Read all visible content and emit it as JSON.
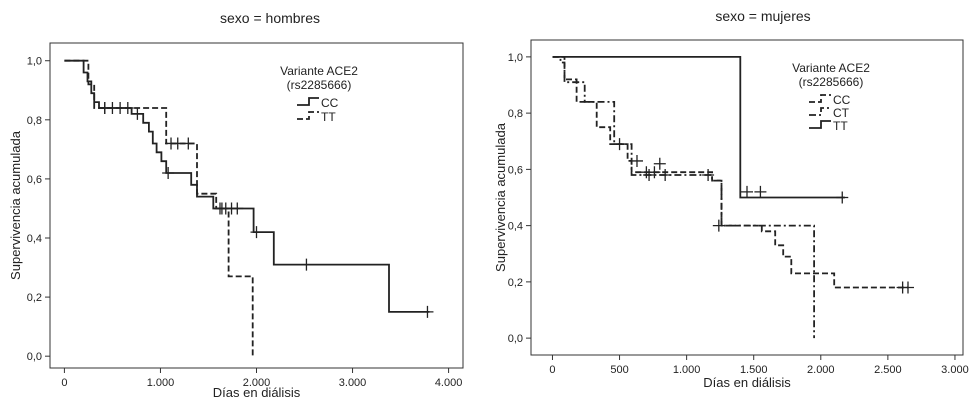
{
  "chart_data": [
    {
      "type": "line",
      "title": "sexo = hombres",
      "xlabel": "Días en diálisis",
      "ylabel": "Supervivencia acumulada",
      "xlim": [
        -150,
        4150
      ],
      "ylim": [
        -0.04,
        1.06
      ],
      "xticks": [
        0,
        1000,
        2000,
        3000,
        4000
      ],
      "xtick_labels": [
        "0",
        "1.000",
        "2.000",
        "3.000",
        "4.000"
      ],
      "yticks": [
        0,
        0.2,
        0.4,
        0.6,
        0.8,
        1.0
      ],
      "ytick_labels": [
        "0,0",
        "0,2",
        "0,4",
        "0,6",
        "0,8",
        "1,0"
      ],
      "legend": {
        "title_line1": "Variante ACE2",
        "title_line2": "(rs2285666)",
        "placement": "top-right"
      },
      "series": [
        {
          "name": "CC",
          "style": "solid",
          "points": [
            [
              0,
              1.0
            ],
            [
              200,
              1.0
            ],
            [
              200,
              0.96
            ],
            [
              240,
              0.96
            ],
            [
              240,
              0.93
            ],
            [
              280,
              0.93
            ],
            [
              280,
              0.89
            ],
            [
              310,
              0.89
            ],
            [
              310,
              0.86
            ],
            [
              360,
              0.86
            ],
            [
              360,
              0.84
            ],
            [
              700,
              0.84
            ],
            [
              700,
              0.82
            ],
            [
              820,
              0.82
            ],
            [
              820,
              0.79
            ],
            [
              880,
              0.79
            ],
            [
              880,
              0.76
            ],
            [
              920,
              0.76
            ],
            [
              920,
              0.72
            ],
            [
              960,
              0.72
            ],
            [
              960,
              0.69
            ],
            [
              1010,
              0.69
            ],
            [
              1010,
              0.66
            ],
            [
              1060,
              0.66
            ],
            [
              1060,
              0.62
            ],
            [
              1320,
              0.62
            ],
            [
              1320,
              0.58
            ],
            [
              1380,
              0.58
            ],
            [
              1380,
              0.54
            ],
            [
              1550,
              0.54
            ],
            [
              1550,
              0.5
            ],
            [
              1970,
              0.5
            ],
            [
              1970,
              0.42
            ],
            [
              2180,
              0.42
            ],
            [
              2180,
              0.31
            ],
            [
              3380,
              0.31
            ],
            [
              3380,
              0.15
            ],
            [
              3800,
              0.15
            ]
          ],
          "censored": [
            [
              420,
              0.84
            ],
            [
              500,
              0.84
            ],
            [
              580,
              0.84
            ],
            [
              660,
              0.84
            ],
            [
              760,
              0.82
            ],
            [
              1080,
              0.62
            ],
            [
              1620,
              0.5
            ],
            [
              1680,
              0.5
            ],
            [
              1740,
              0.5
            ],
            [
              1800,
              0.5
            ],
            [
              2000,
              0.42
            ],
            [
              2520,
              0.31
            ],
            [
              3780,
              0.15
            ]
          ]
        },
        {
          "name": "TT",
          "style": "dashed",
          "points": [
            [
              0,
              1.0
            ],
            [
              250,
              1.0
            ],
            [
              250,
              0.92
            ],
            [
              310,
              0.92
            ],
            [
              310,
              0.84
            ],
            [
              1060,
              0.84
            ],
            [
              1060,
              0.72
            ],
            [
              1380,
              0.72
            ],
            [
              1380,
              0.55
            ],
            [
              1580,
              0.55
            ],
            [
              1580,
              0.5
            ],
            [
              1710,
              0.5
            ],
            [
              1710,
              0.27
            ],
            [
              1960,
              0.27
            ],
            [
              1960,
              0.0
            ]
          ],
          "censored": [
            [
              420,
              0.84
            ],
            [
              1110,
              0.72
            ],
            [
              1180,
              0.72
            ],
            [
              1290,
              0.72
            ],
            [
              1640,
              0.5
            ]
          ]
        }
      ]
    },
    {
      "type": "line",
      "title": "sexo = mujeres",
      "xlabel": "Días en diálisis",
      "ylabel": "Supervivencia acumulada",
      "xlim": [
        -160,
        3060
      ],
      "ylim": [
        -0.06,
        1.06
      ],
      "xticks": [
        0,
        500,
        1000,
        1500,
        2000,
        2500,
        3000
      ],
      "xtick_labels": [
        "0",
        "500",
        "1.000",
        "1.500",
        "2.000",
        "2.500",
        "3.000"
      ],
      "yticks": [
        0,
        0.2,
        0.4,
        0.6,
        0.8,
        1.0
      ],
      "ytick_labels": [
        "0,0",
        "0,2",
        "0,4",
        "0,6",
        "0,8",
        "1,0"
      ],
      "legend": {
        "title_line1": "Variante ACE2",
        "title_line2": "(rs2285666)",
        "placement": "top-right"
      },
      "series": [
        {
          "name": "CC",
          "style": "dashed",
          "points": [
            [
              0,
              1.0
            ],
            [
              90,
              1.0
            ],
            [
              90,
              0.92
            ],
            [
              180,
              0.92
            ],
            [
              180,
              0.84
            ],
            [
              330,
              0.84
            ],
            [
              330,
              0.75
            ],
            [
              430,
              0.75
            ],
            [
              430,
              0.69
            ],
            [
              560,
              0.69
            ],
            [
              560,
              0.63
            ],
            [
              590,
              0.63
            ],
            [
              590,
              0.59
            ],
            [
              1190,
              0.59
            ],
            [
              1190,
              0.56
            ],
            [
              1260,
              0.56
            ],
            [
              1260,
              0.4
            ],
            [
              1560,
              0.4
            ],
            [
              1560,
              0.38
            ],
            [
              1660,
              0.38
            ],
            [
              1660,
              0.33
            ],
            [
              1720,
              0.33
            ],
            [
              1720,
              0.29
            ],
            [
              1780,
              0.29
            ],
            [
              1780,
              0.23
            ],
            [
              2100,
              0.23
            ],
            [
              2100,
              0.18
            ],
            [
              2650,
              0.18
            ]
          ],
          "censored": [
            [
              630,
              0.63
            ],
            [
              700,
              0.59
            ],
            [
              760,
              0.59
            ],
            [
              800,
              0.62
            ],
            [
              1240,
              0.4
            ],
            [
              1550,
              0.52
            ],
            [
              2610,
              0.18
            ],
            [
              2650,
              0.18
            ]
          ]
        },
        {
          "name": "CT",
          "style": "dash-dot",
          "points": [
            [
              0,
              1.0
            ],
            [
              60,
              1.0
            ],
            [
              60,
              0.98
            ],
            [
              90,
              0.98
            ],
            [
              90,
              0.91
            ],
            [
              240,
              0.91
            ],
            [
              240,
              0.84
            ],
            [
              460,
              0.84
            ],
            [
              460,
              0.69
            ],
            [
              590,
              0.69
            ],
            [
              590,
              0.58
            ],
            [
              1190,
              0.58
            ],
            [
              1190,
              0.56
            ],
            [
              1260,
              0.56
            ],
            [
              1260,
              0.4
            ],
            [
              1950,
              0.4
            ],
            [
              1950,
              0.0
            ]
          ],
          "censored": [
            [
              500,
              0.69
            ],
            [
              720,
              0.58
            ],
            [
              840,
              0.58
            ],
            [
              1160,
              0.58
            ]
          ]
        },
        {
          "name": "TT",
          "style": "solid",
          "points": [
            [
              0,
              1.0
            ],
            [
              1400,
              1.0
            ],
            [
              1400,
              0.5
            ],
            [
              2180,
              0.5
            ]
          ],
          "censored": [
            [
              1450,
              0.52
            ],
            [
              2160,
              0.5
            ]
          ]
        }
      ]
    }
  ]
}
